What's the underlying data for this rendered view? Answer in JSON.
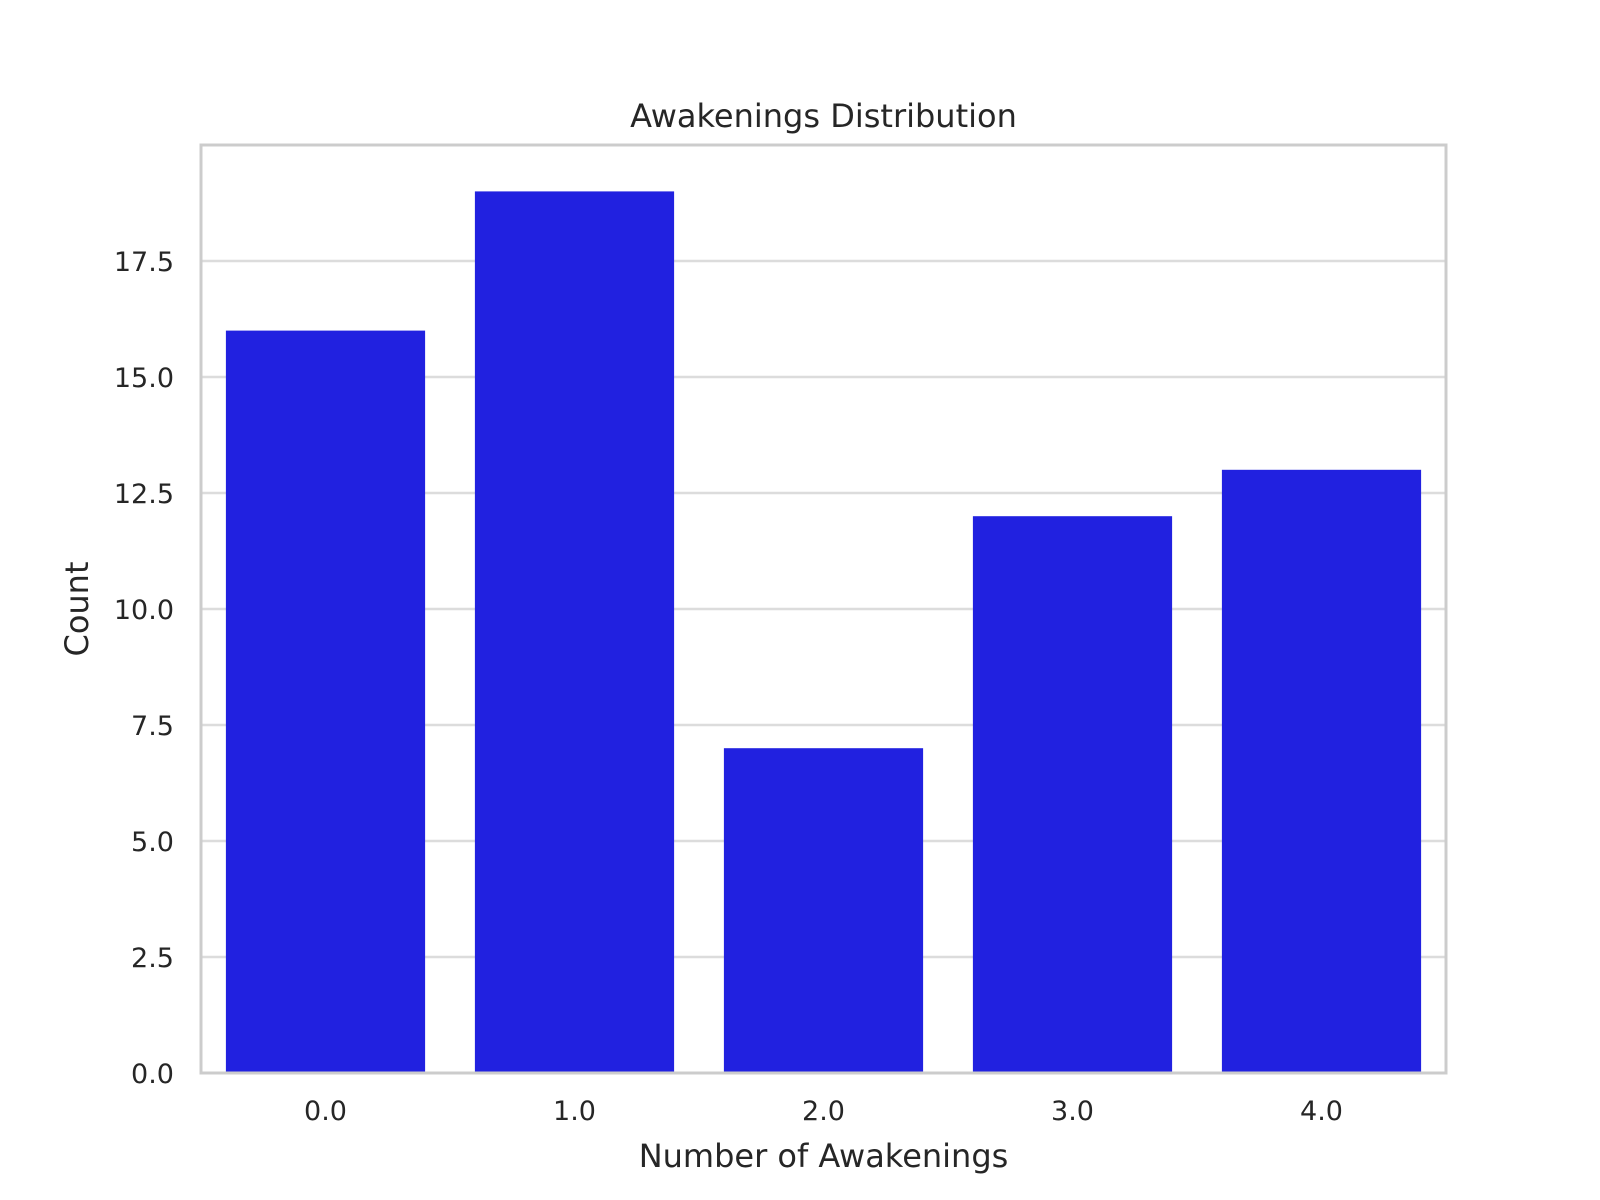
{
  "chart_data": {
    "type": "bar",
    "title": "Awakenings Distribution",
    "xlabel": "Number of Awakenings",
    "ylabel": "Count",
    "categories": [
      "0.0",
      "1.0",
      "2.0",
      "3.0",
      "4.0"
    ],
    "values": [
      16,
      19,
      7,
      12,
      13
    ],
    "ylim": [
      0,
      20
    ],
    "yticks": [
      "0.0",
      "2.5",
      "5.0",
      "7.5",
      "10.0",
      "12.5",
      "15.0",
      "17.5"
    ],
    "grid": "horizontal",
    "legend": "none",
    "colors": {
      "bar": "#2121E0",
      "grid": "#DCDCDC",
      "frame": "#CCCCCC",
      "text": "#262626"
    }
  }
}
